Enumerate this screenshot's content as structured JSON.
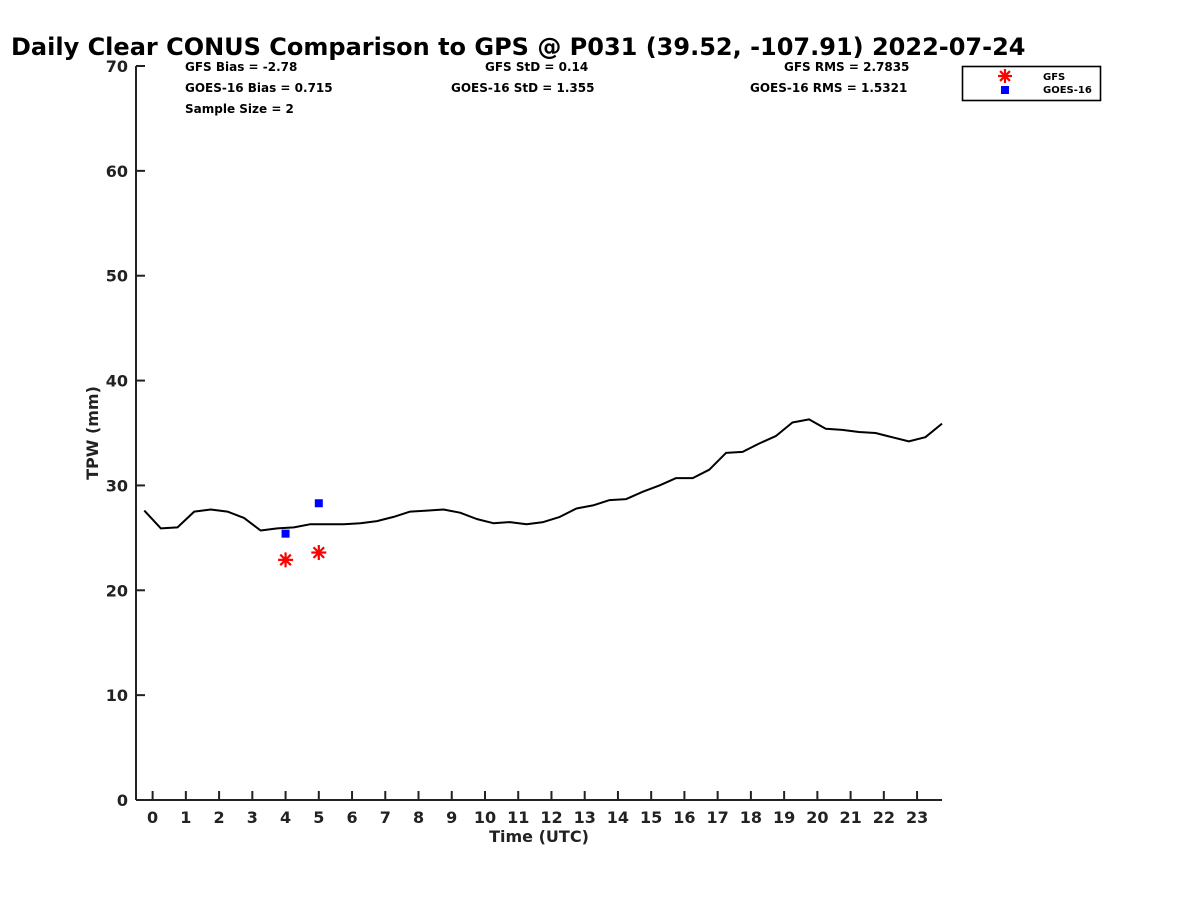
{
  "chart_data": {
    "type": "line",
    "title": "Daily Clear CONUS Comparison to GPS @ P031 (39.52, -107.91) 2022-07-24",
    "xlabel": "Time (UTC)",
    "ylabel": "TPW (mm)",
    "xlim": [
      -0.5,
      23.75
    ],
    "ylim": [
      0,
      70
    ],
    "x_ticks": [
      "0",
      "1",
      "2",
      "3",
      "4",
      "5",
      "6",
      "7",
      "8",
      "9",
      "10",
      "11",
      "12",
      "13",
      "14",
      "15",
      "16",
      "17",
      "18",
      "19",
      "20",
      "21",
      "22",
      "23"
    ],
    "y_ticks": [
      "0",
      "10",
      "20",
      "30",
      "40",
      "50",
      "60",
      "70"
    ],
    "grid": false,
    "legend_position": "top-right",
    "stats": {
      "gfs_bias": "GFS Bias = -2.78",
      "goes_bias": "GOES-16 Bias = 0.715",
      "sample_size": "Sample Size = 2",
      "gfs_std": "GFS StD = 0.14",
      "goes_std": "GOES-16 StD = 1.355",
      "gfs_rms": "GFS RMS = 2.7835",
      "goes_rms": "GOES-16 RMS = 1.5321"
    },
    "series": [
      {
        "kind": "line",
        "color": "#000000",
        "x": [
          -0.25,
          0.25,
          0.75,
          1.25,
          1.75,
          2.25,
          2.75,
          3.25,
          3.75,
          4.25,
          4.75,
          5.25,
          5.75,
          6.25,
          6.75,
          7.25,
          7.75,
          8.25,
          8.75,
          9.25,
          9.75,
          10.25,
          10.75,
          11.25,
          11.75,
          12.25,
          12.75,
          13.25,
          13.75,
          14.25,
          14.75,
          15.25,
          15.75,
          16.25,
          16.75,
          17.25,
          17.75,
          18.25,
          18.75,
          19.25,
          19.75,
          20.25,
          20.75,
          21.25,
          21.75,
          22.25,
          22.75,
          23.25,
          23.75
        ],
        "y": [
          27.6,
          25.9,
          26.0,
          27.5,
          27.7,
          27.5,
          26.9,
          25.7,
          25.9,
          26.0,
          26.3,
          26.3,
          26.3,
          26.4,
          26.6,
          27.0,
          27.5,
          27.6,
          27.7,
          27.4,
          26.8,
          26.4,
          26.5,
          26.3,
          26.5,
          27.0,
          27.8,
          28.1,
          28.6,
          28.7,
          29.4,
          30.0,
          30.7,
          30.7,
          31.5,
          33.1,
          33.2,
          34.0,
          34.7,
          36.0,
          36.3,
          35.4,
          35.3,
          35.1,
          35.0,
          34.6,
          34.2,
          34.6,
          35.9
        ]
      },
      {
        "name": "GFS",
        "kind": "marker",
        "marker": "asterisk",
        "color": "#ff0000",
        "x": [
          4.0,
          5.0
        ],
        "y": [
          22.9,
          23.6
        ]
      },
      {
        "name": "GOES-16",
        "kind": "marker",
        "marker": "square",
        "color": "#0000ff",
        "x": [
          4.0,
          5.0
        ],
        "y": [
          25.4,
          28.3
        ]
      }
    ]
  }
}
